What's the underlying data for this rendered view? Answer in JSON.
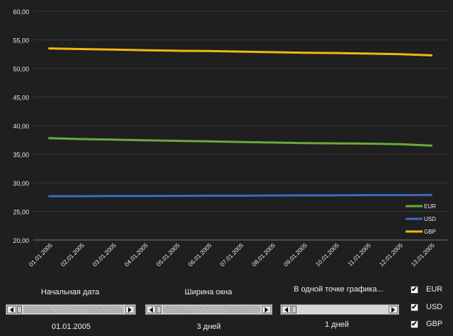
{
  "chart_data": {
    "type": "line",
    "categories": [
      "01.01.2005",
      "02.01.2005",
      "03.01.2005",
      "04.01.2005",
      "05.01.2005",
      "06.01.2005",
      "07.01.2005",
      "08.01.2005",
      "09.01.2005",
      "10.01.2005",
      "11.01.2005",
      "12.01.2005",
      "13.01.2005"
    ],
    "y_ticks": [
      "20,00",
      "25,00",
      "30,00",
      "35,00",
      "40,00",
      "45,00",
      "50,00",
      "55,00",
      "60,00"
    ],
    "ylim": [
      20,
      60
    ],
    "grid": true,
    "legend_position": "bottom-right",
    "series": [
      {
        "name": "EUR",
        "color": "#6aaa3a",
        "values": [
          37.8,
          37.65,
          37.55,
          37.45,
          37.35,
          37.25,
          37.15,
          37.05,
          36.95,
          36.9,
          36.85,
          36.75,
          36.5
        ]
      },
      {
        "name": "USD",
        "color": "#3a6cc0",
        "values": [
          27.65,
          27.65,
          27.7,
          27.7,
          27.72,
          27.75,
          27.75,
          27.78,
          27.8,
          27.82,
          27.85,
          27.85,
          27.88
        ]
      },
      {
        "name": "GBP",
        "color": "#f2b90f",
        "values": [
          53.5,
          53.4,
          53.3,
          53.2,
          53.1,
          53.05,
          52.95,
          52.85,
          52.75,
          52.7,
          52.6,
          52.5,
          52.3
        ]
      }
    ]
  },
  "controls": {
    "start_date": {
      "label": "Начальная дата",
      "value": "01.01.2005",
      "position_fraction": 0.0
    },
    "window_width": {
      "label": "Ширина окна",
      "value": "3 дней",
      "position_fraction": 0.0
    },
    "point_step": {
      "label": "В одной точке графика...",
      "value": "1 дней",
      "position_fraction": 0.0
    }
  },
  "checkboxes": [
    {
      "label": "EUR",
      "checked": true
    },
    {
      "label": "USD",
      "checked": true
    },
    {
      "label": "GBP",
      "checked": true
    }
  ],
  "checkmark_glyph": "✔"
}
